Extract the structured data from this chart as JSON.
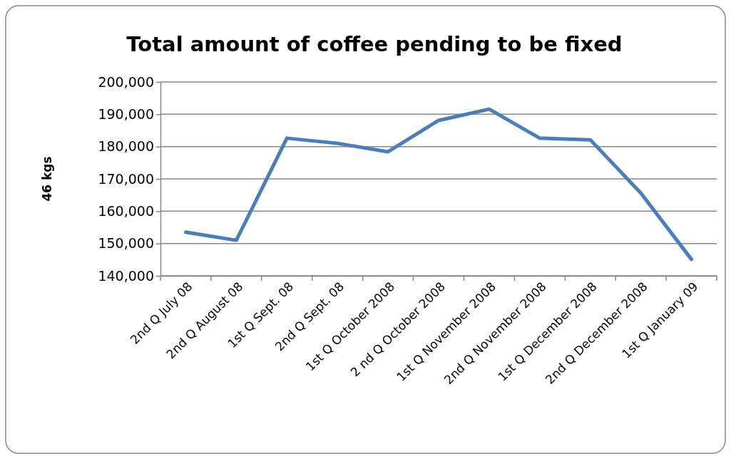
{
  "chart_data": {
    "type": "line",
    "title": "Total amount of coffee pending to be fixed",
    "ylabel": "46 kgs",
    "categories": [
      "2nd Q July 08",
      "2nd Q August 08",
      "1st Q Sept. 08",
      "2nd Q Sept. 08",
      "1st Q October 2008",
      "2 nd Q October 2008",
      "1st Q November 2008",
      "2nd Q November 2008",
      "1st Q December 2008",
      "2nd Q December 2008",
      "1st Q January 09"
    ],
    "values": [
      153500,
      151000,
      182600,
      181000,
      178400,
      188100,
      191600,
      182600,
      182100,
      165600,
      145100
    ],
    "color": "#4a7ebb",
    "ylim": [
      140000,
      200000
    ],
    "yticks": [
      {
        "value": 140000,
        "label": "140,000"
      },
      {
        "value": 150000,
        "label": "150,000"
      },
      {
        "value": 160000,
        "label": "160,000"
      },
      {
        "value": 170000,
        "label": "170,000"
      },
      {
        "value": 180000,
        "label": "180,000"
      },
      {
        "value": 190000,
        "label": "190,000"
      },
      {
        "value": 200000,
        "label": "200,000"
      }
    ],
    "grid": "y",
    "marker": "none",
    "line_style": "solid"
  }
}
